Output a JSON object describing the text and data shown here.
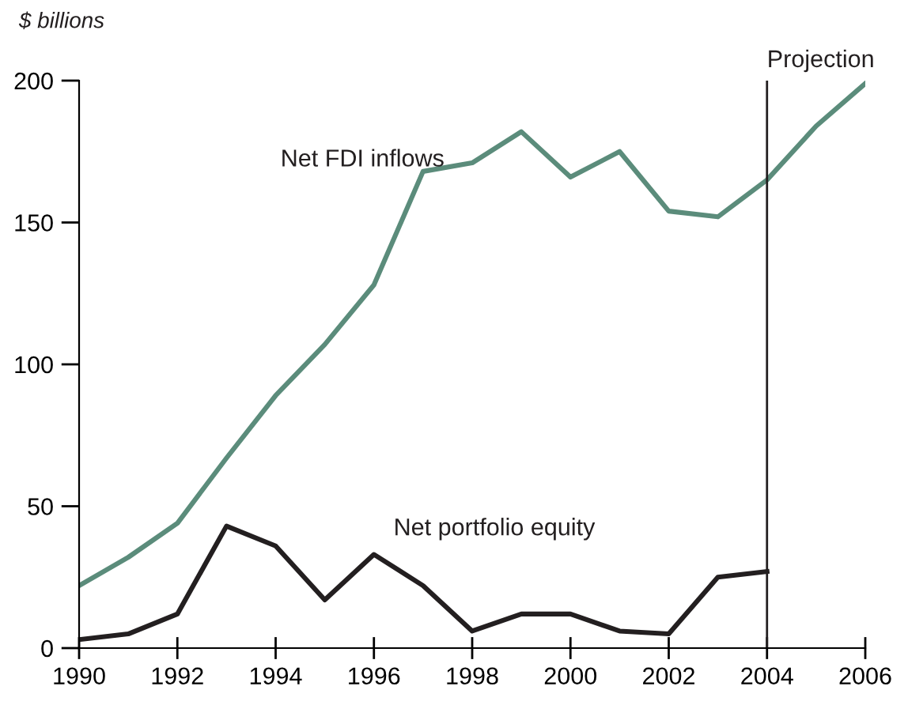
{
  "chart_data": {
    "type": "line",
    "ylabel": "$ billions",
    "x": [
      1990,
      1991,
      1992,
      1993,
      1994,
      1995,
      1996,
      1997,
      1998,
      1999,
      2000,
      2001,
      2002,
      2003,
      2004,
      2005,
      2006
    ],
    "series": [
      {
        "name": "Net FDI inflows",
        "color": "#5b8c7b",
        "values": [
          22,
          32,
          44,
          67,
          89,
          107,
          128,
          168,
          171,
          182,
          166,
          175,
          154,
          152,
          165,
          184,
          199
        ]
      },
      {
        "name": "Net portfolio equity",
        "color": "#231f20",
        "values": [
          3,
          5,
          12,
          43,
          36,
          17,
          33,
          22,
          6,
          12,
          12,
          6,
          5,
          25,
          27,
          null,
          null
        ]
      }
    ],
    "xlim": [
      1990,
      2006
    ],
    "xticks": [
      1990,
      1992,
      1994,
      1996,
      1998,
      2000,
      2002,
      2004,
      2006
    ],
    "ylim": [
      0,
      200
    ],
    "yticks": [
      0,
      50,
      100,
      150,
      200
    ],
    "ref_lines": [
      {
        "axis": "x",
        "value": 2004,
        "label": "Projection",
        "color": "#231f20"
      }
    ],
    "grid": false,
    "legend": false,
    "marker": "none",
    "line_style": "solid"
  }
}
